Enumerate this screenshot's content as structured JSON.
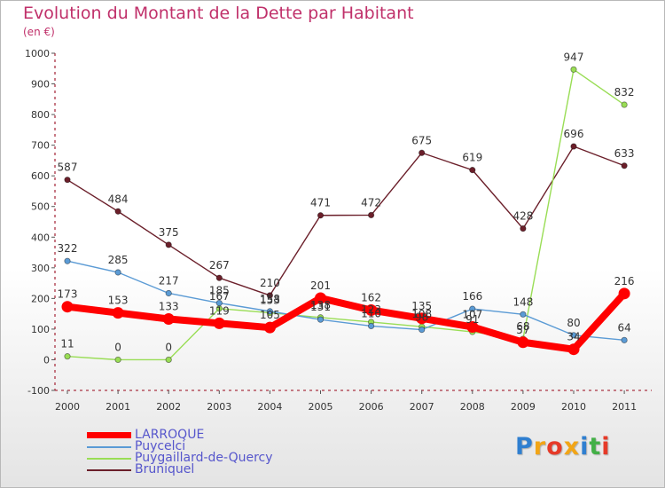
{
  "header": {
    "title": "Evolution du Montant de la Dette par Habitant",
    "unit": "(en €)"
  },
  "logo": {
    "letters": [
      "P",
      "r",
      "o",
      "x",
      "i",
      "t",
      "i"
    ],
    "colors": [
      "#2f7fd0",
      "#f2a516",
      "#e63a28",
      "#f2a516",
      "#2f7fd0",
      "#43b047",
      "#e63a28"
    ]
  },
  "chart_data": {
    "type": "line",
    "title": "Evolution du Montant de la Dette par Habitant",
    "subtitle": "(en €)",
    "x": [
      "2000",
      "2001",
      "2002",
      "2003",
      "2004",
      "2005",
      "2006",
      "2007",
      "2008",
      "2009",
      "2010",
      "2011"
    ],
    "ylim": [
      -100,
      1000
    ],
    "yticks": [
      -100,
      0,
      100,
      200,
      300,
      400,
      500,
      600,
      700,
      800,
      900,
      1000
    ],
    "grid": false,
    "legend_position": "bottom-left",
    "series": [
      {
        "name": "LARROQUE",
        "color": "#ff0000",
        "values": [
          173,
          153,
          133,
          119,
          105,
          201,
          162,
          135,
          107,
          57,
          34,
          216
        ],
        "labels": [
          "173",
          "153",
          "133",
          "119",
          "105",
          "201",
          "162",
          "135",
          "107",
          "57",
          "34",
          "216"
        ]
      },
      {
        "name": "Puycelci",
        "color": "#5b9bd5",
        "values": [
          322,
          285,
          217,
          185,
          158,
          131,
          110,
          98,
          166,
          148,
          80,
          64
        ],
        "labels": [
          "322",
          "285",
          "217",
          "185",
          "158",
          "131",
          "110",
          "98",
          "166",
          "148",
          "80",
          "64"
        ]
      },
      {
        "name": "Puygaillard-de-Quercy",
        "color": "#99dd55",
        "values": [
          11,
          0,
          0,
          167,
          153,
          138,
          123,
          108,
          91,
          68,
          947,
          832
        ],
        "labels": [
          "11",
          "0",
          "0",
          "167",
          "153",
          "138",
          "123",
          "108",
          "91",
          "68",
          "947",
          "832"
        ]
      },
      {
        "name": "Bruniquel",
        "color": "#6b1f2a",
        "values": [
          587,
          484,
          375,
          267,
          210,
          471,
          472,
          675,
          619,
          428,
          696,
          633
        ],
        "labels": [
          "587",
          "484",
          "375",
          "267",
          "210",
          "471",
          "472",
          "675",
          "619",
          "428",
          "696",
          "633"
        ]
      }
    ]
  }
}
